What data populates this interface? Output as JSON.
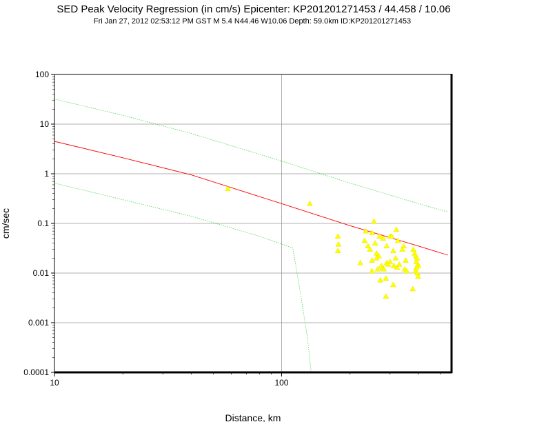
{
  "chart_data": {
    "type": "scatter",
    "title": "SED Peak Velocity Regression (in cm/s) Epicenter: KP201201271453 / 44.458 / 10.06",
    "subtitle": "Fri Jan 27, 2012 02:53:12 PM GST   M 5.4   N44.46 W10.06   Depth: 59.0km   ID:KP201201271453",
    "xlabel": "Distance, km",
    "ylabel": "cm/sec",
    "x_scale": "log",
    "y_scale": "log",
    "xlim": [
      10,
      560
    ],
    "ylim": [
      0.0001,
      100
    ],
    "x_ticks": [
      {
        "value": 10,
        "label": "10"
      },
      {
        "value": 100,
        "label": "100"
      }
    ],
    "y_ticks": [
      {
        "value": 100,
        "label": "100"
      },
      {
        "value": 10,
        "label": "10"
      },
      {
        "value": 1,
        "label": "1"
      },
      {
        "value": 0.1,
        "label": "0.1"
      },
      {
        "value": 0.01,
        "label": "0.01"
      },
      {
        "value": 0.001,
        "label": "0.001"
      },
      {
        "value": 0.0001,
        "label": "0.0001"
      }
    ],
    "grid": true,
    "colors": {
      "points": "#ffff00",
      "regression": "#ff0000",
      "bounds": "#00cc00",
      "grid": "#999999"
    },
    "lines": [
      {
        "role": "regression",
        "x": [
          10,
          20,
          40,
          100,
          200,
          400,
          540
        ],
        "y": [
          4.5,
          2.1,
          0.95,
          0.25,
          0.09,
          0.035,
          0.023
        ]
      },
      {
        "role": "upper-bound",
        "x": [
          10,
          20,
          40,
          100,
          200,
          400,
          540
        ],
        "y": [
          32,
          15,
          6.5,
          1.8,
          0.65,
          0.25,
          0.17
        ]
      },
      {
        "role": "lower-bound",
        "x": [
          10,
          20,
          40,
          80,
          112,
          120,
          130,
          135
        ],
        "y": [
          0.65,
          0.3,
          0.14,
          0.055,
          0.032,
          0.005,
          0.0005,
          0.0001
        ]
      }
    ],
    "points": [
      {
        "x": 58,
        "y": 0.5
      },
      {
        "x": 133,
        "y": 0.25
      },
      {
        "x": 177,
        "y": 0.055
      },
      {
        "x": 178,
        "y": 0.038
      },
      {
        "x": 177,
        "y": 0.028
      },
      {
        "x": 235,
        "y": 0.07
      },
      {
        "x": 255,
        "y": 0.11
      },
      {
        "x": 250,
        "y": 0.065
      },
      {
        "x": 232,
        "y": 0.045
      },
      {
        "x": 240,
        "y": 0.035
      },
      {
        "x": 258,
        "y": 0.04
      },
      {
        "x": 270,
        "y": 0.055
      },
      {
        "x": 280,
        "y": 0.05
      },
      {
        "x": 300,
        "y": 0.055
      },
      {
        "x": 320,
        "y": 0.075
      },
      {
        "x": 305,
        "y": 0.055
      },
      {
        "x": 325,
        "y": 0.045
      },
      {
        "x": 245,
        "y": 0.03
      },
      {
        "x": 262,
        "y": 0.025
      },
      {
        "x": 268,
        "y": 0.022
      },
      {
        "x": 290,
        "y": 0.035
      },
      {
        "x": 310,
        "y": 0.028
      },
      {
        "x": 345,
        "y": 0.035
      },
      {
        "x": 340,
        "y": 0.03
      },
      {
        "x": 222,
        "y": 0.016
      },
      {
        "x": 250,
        "y": 0.018
      },
      {
        "x": 262,
        "y": 0.02
      },
      {
        "x": 278,
        "y": 0.013
      },
      {
        "x": 282,
        "y": 0.012
      },
      {
        "x": 290,
        "y": 0.016
      },
      {
        "x": 295,
        "y": 0.015
      },
      {
        "x": 300,
        "y": 0.017
      },
      {
        "x": 318,
        "y": 0.02
      },
      {
        "x": 312,
        "y": 0.014
      },
      {
        "x": 322,
        "y": 0.013
      },
      {
        "x": 352,
        "y": 0.018
      },
      {
        "x": 348,
        "y": 0.012
      },
      {
        "x": 355,
        "y": 0.011
      },
      {
        "x": 380,
        "y": 0.03
      },
      {
        "x": 385,
        "y": 0.025
      },
      {
        "x": 390,
        "y": 0.022
      },
      {
        "x": 395,
        "y": 0.02
      },
      {
        "x": 392,
        "y": 0.017
      },
      {
        "x": 398,
        "y": 0.015
      },
      {
        "x": 400,
        "y": 0.014
      },
      {
        "x": 393,
        "y": 0.013
      },
      {
        "x": 388,
        "y": 0.011
      },
      {
        "x": 396,
        "y": 0.01
      },
      {
        "x": 399,
        "y": 0.0085
      },
      {
        "x": 250,
        "y": 0.011
      },
      {
        "x": 265,
        "y": 0.012
      },
      {
        "x": 272,
        "y": 0.0072
      },
      {
        "x": 288,
        "y": 0.0078
      },
      {
        "x": 310,
        "y": 0.0058
      },
      {
        "x": 378,
        "y": 0.0048
      },
      {
        "x": 288,
        "y": 0.0034
      },
      {
        "x": 330,
        "y": 0.015
      },
      {
        "x": 275,
        "y": 0.014
      }
    ]
  }
}
